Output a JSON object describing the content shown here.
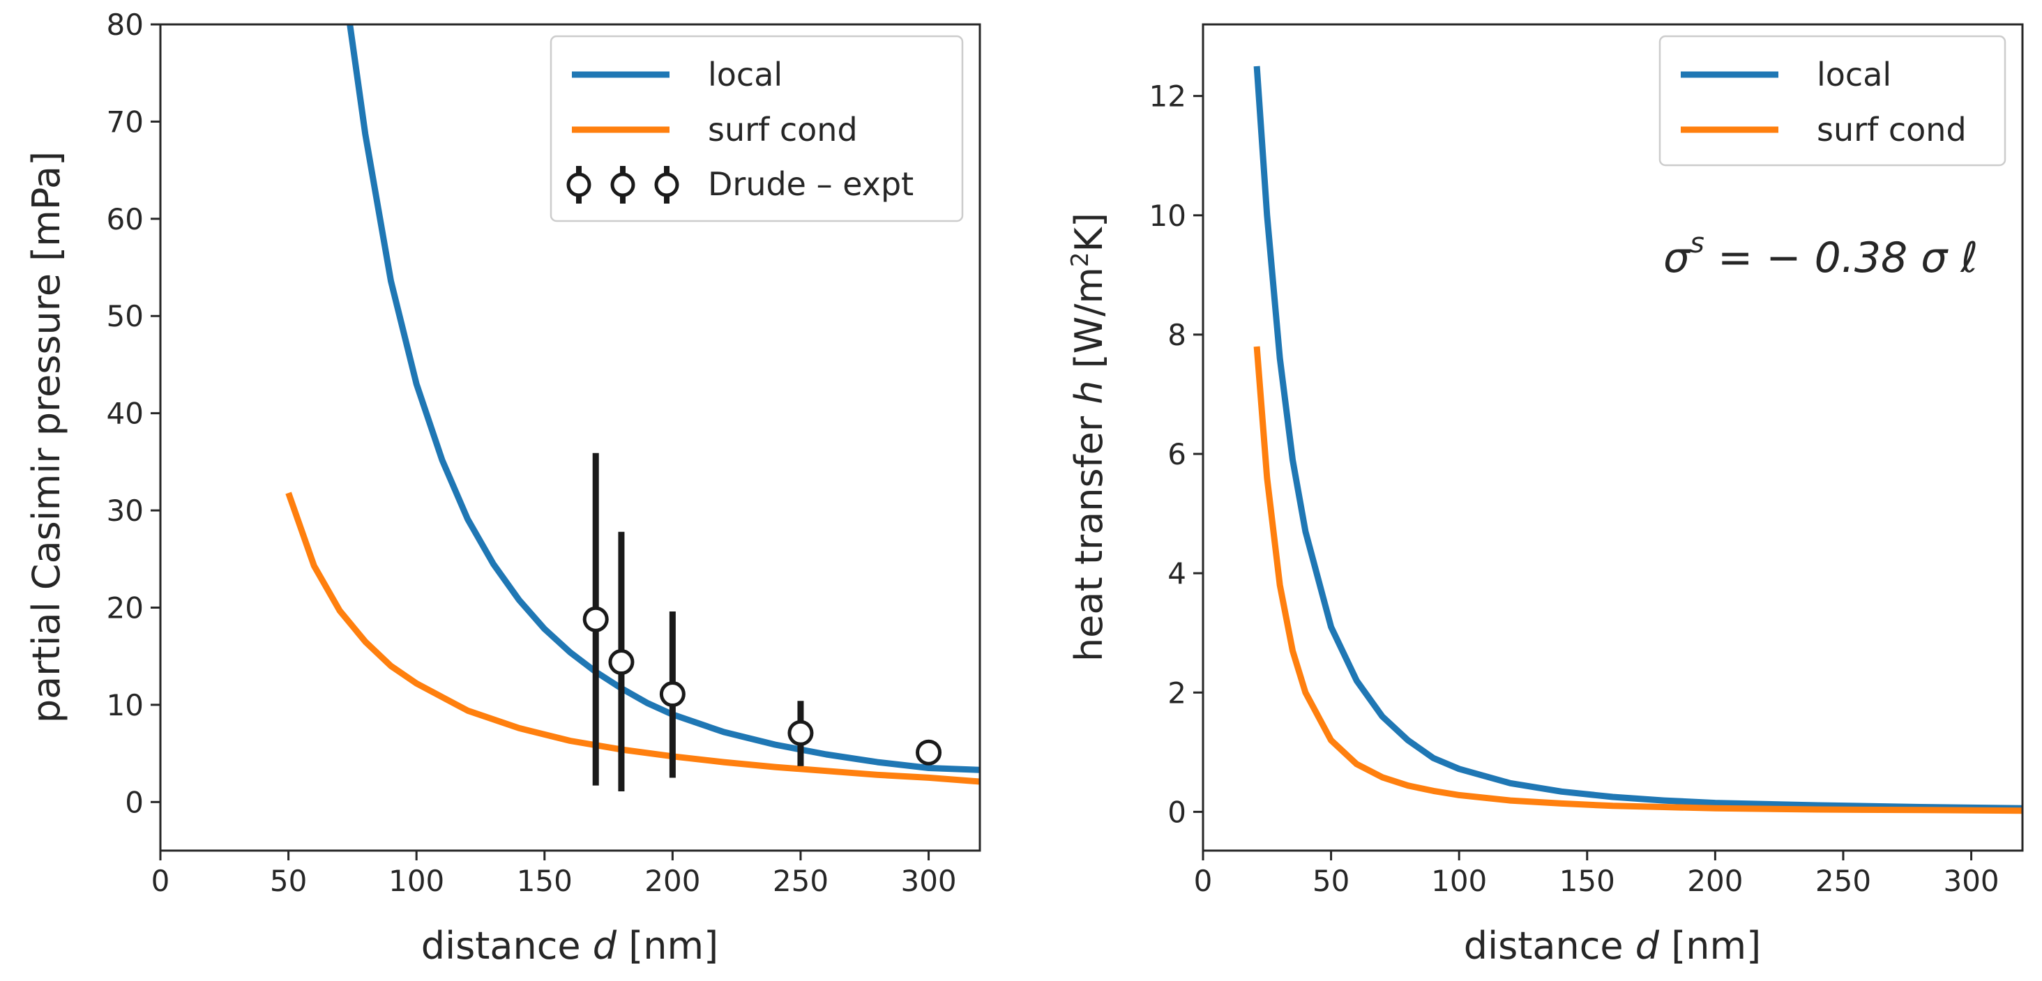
{
  "colors": {
    "local": "#1f77b4",
    "surf_cond": "#ff7f0e",
    "expt": "#1a1a1a"
  },
  "chart_data": [
    {
      "type": "line",
      "title": "",
      "xlabel_pre": "distance ",
      "xlabel_var": "d",
      "xlabel_post": " [nm]",
      "ylabel": "partial Casimir pressure [mPa]",
      "xlim": [
        0,
        320
      ],
      "ylim": [
        -5,
        80
      ],
      "xticks": [
        "0",
        "50",
        "100",
        "150",
        "200",
        "250",
        "300"
      ],
      "yticks": [
        "0",
        "10",
        "20",
        "30",
        "40",
        "50",
        "60",
        "70",
        "80"
      ],
      "legend_position": "top-right",
      "series": [
        {
          "name": "local",
          "color_key": "local",
          "x": [
            74,
            80,
            90,
            100,
            110,
            120,
            130,
            140,
            150,
            160,
            170,
            180,
            190,
            200,
            220,
            240,
            260,
            280,
            300,
            320
          ],
          "values": [
            80,
            68.7,
            53.6,
            43.0,
            35.2,
            29.1,
            24.5,
            20.8,
            17.8,
            15.4,
            13.4,
            11.7,
            10.2,
            9.0,
            7.2,
            5.9,
            4.9,
            4.1,
            3.5,
            3.3
          ]
        },
        {
          "name": "surf cond",
          "color_key": "surf_cond",
          "x": [
            50,
            60,
            70,
            80,
            90,
            100,
            120,
            140,
            160,
            180,
            200,
            220,
            240,
            260,
            280,
            300,
            320
          ],
          "values": [
            31.8,
            24.3,
            19.7,
            16.5,
            14.0,
            12.2,
            9.4,
            7.6,
            6.3,
            5.4,
            4.7,
            4.1,
            3.6,
            3.2,
            2.8,
            2.5,
            2.1
          ]
        }
      ],
      "points": {
        "name": "Drude – expt",
        "x": [
          170,
          180,
          200,
          250,
          300
        ],
        "values": [
          18.8,
          14.4,
          11.1,
          7.1,
          5.1
        ],
        "err_low": [
          1.7,
          1.1,
          2.5,
          3.7,
          3.8
        ],
        "err_high": [
          35.9,
          27.8,
          19.6,
          10.4,
          6.3
        ]
      }
    },
    {
      "type": "line",
      "title": "",
      "xlabel_pre": "distance ",
      "xlabel_var": "d",
      "xlabel_post": " [nm]",
      "ylabel_pre": "heat transfer ",
      "ylabel_var": "h",
      "ylabel_post": " [W/m",
      "ylabel_sup": "2",
      "ylabel_end": "K]",
      "xlim": [
        0,
        320
      ],
      "ylim": [
        -0.65,
        13.2
      ],
      "xticks": [
        "0",
        "50",
        "100",
        "150",
        "200",
        "250",
        "300"
      ],
      "yticks": [
        "0",
        "2",
        "4",
        "6",
        "8",
        "10",
        "12"
      ],
      "legend_position": "top-right",
      "annotation": {
        "sigma": "σ",
        "sup": "s",
        "rest": " = − 0.38 σ ℓ"
      },
      "series": [
        {
          "name": "local",
          "color_key": "local",
          "x": [
            21,
            25,
            30,
            35,
            40,
            50,
            60,
            70,
            80,
            90,
            100,
            120,
            140,
            160,
            180,
            200,
            240,
            280,
            320
          ],
          "values": [
            12.5,
            10.0,
            7.6,
            5.9,
            4.7,
            3.1,
            2.2,
            1.6,
            1.2,
            0.9,
            0.72,
            0.48,
            0.34,
            0.25,
            0.19,
            0.15,
            0.11,
            0.08,
            0.06
          ]
        },
        {
          "name": "surf cond",
          "color_key": "surf_cond",
          "x": [
            21,
            25,
            30,
            35,
            40,
            50,
            60,
            70,
            80,
            90,
            100,
            120,
            140,
            160,
            180,
            200,
            240,
            280,
            320
          ],
          "values": [
            7.8,
            5.6,
            3.8,
            2.7,
            2.0,
            1.2,
            0.8,
            0.58,
            0.44,
            0.35,
            0.28,
            0.19,
            0.14,
            0.1,
            0.08,
            0.06,
            0.04,
            0.03,
            0.02
          ]
        }
      ]
    }
  ]
}
